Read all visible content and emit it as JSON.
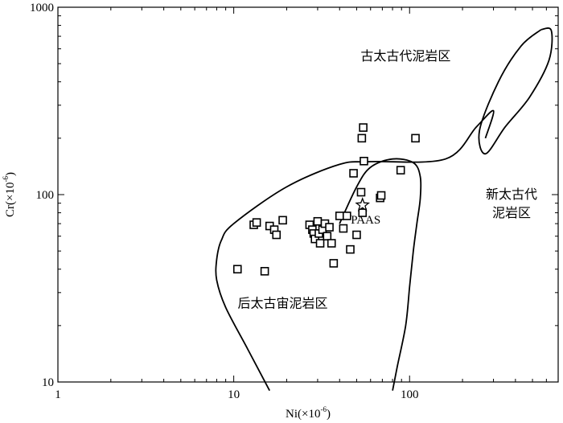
{
  "chart_data": {
    "type": "scatter",
    "xlabel": {
      "base": "Ni(×10",
      "exp": "-6",
      "close": ")"
    },
    "ylabel": {
      "base": "Cr(×10",
      "exp": "-6",
      "close": ")"
    },
    "xscale": "log",
    "yscale": "log",
    "xlim": [
      1,
      700
    ],
    "ylim": [
      10,
      1000
    ],
    "xticks": [
      {
        "value": 1,
        "label": "1"
      },
      {
        "value": 10,
        "label": "10"
      },
      {
        "value": 100,
        "label": "100"
      }
    ],
    "yticks": [
      {
        "value": 10,
        "label": "10"
      },
      {
        "value": 100,
        "label": "100"
      },
      {
        "value": 1000,
        "label": "1000"
      }
    ],
    "grid": false,
    "regions": [
      {
        "name": "archean",
        "label": "古太古代泥岩区",
        "label_pos": {
          "x": 95,
          "y": 520
        },
        "outline": [
          [
            270,
            200
          ],
          [
            300,
            280
          ],
          [
            240,
            230
          ],
          [
            160,
            155
          ],
          [
            60,
            150
          ],
          [
            40,
            145
          ],
          [
            20,
            110
          ],
          [
            10,
            70
          ],
          [
            8.5,
            57
          ],
          [
            8,
            45
          ],
          [
            8,
            35
          ],
          [
            9,
            25
          ],
          [
            12,
            15
          ],
          [
            16,
            9
          ]
        ]
      },
      {
        "name": "neoarchean",
        "label": "新太古代",
        "label2": "泥岩区",
        "label_pos": {
          "x": 380,
          "y": 95
        },
        "outline": [
          [
            560,
            760
          ],
          [
            640,
            750
          ],
          [
            620,
            520
          ],
          [
            480,
            330
          ],
          [
            350,
            230
          ],
          [
            270,
            165
          ],
          [
            250,
            220
          ],
          [
            320,
            400
          ],
          [
            430,
            620
          ],
          [
            560,
            760
          ]
        ]
      },
      {
        "name": "post-archean",
        "label": "后太古宙泥岩区",
        "label_pos": {
          "x": 19,
          "y": 25
        },
        "outline": [
          [
            40,
            70
          ],
          [
            50,
            110
          ],
          [
            60,
            140
          ],
          [
            80,
            155
          ],
          [
            105,
            148
          ],
          [
            115,
            125
          ],
          [
            115,
            95
          ],
          [
            110,
            70
          ],
          [
            105,
            50
          ],
          [
            100,
            32
          ],
          [
            95,
            20
          ],
          [
            85,
            12
          ],
          [
            80,
            9
          ]
        ]
      }
    ],
    "reference": {
      "label": "PAAS",
      "x": 54,
      "y": 88
    },
    "samples": [
      [
        10.5,
        40
      ],
      [
        13,
        69
      ],
      [
        13.5,
        71
      ],
      [
        15,
        39
      ],
      [
        16,
        68
      ],
      [
        17,
        65
      ],
      [
        17.5,
        61
      ],
      [
        19,
        73
      ],
      [
        27,
        69
      ],
      [
        28,
        65
      ],
      [
        28.5,
        62
      ],
      [
        29,
        58
      ],
      [
        30,
        72
      ],
      [
        30.5,
        62
      ],
      [
        31,
        55
      ],
      [
        32,
        65
      ],
      [
        33,
        70
      ],
      [
        34,
        60
      ],
      [
        35,
        67
      ],
      [
        36,
        55
      ],
      [
        37,
        43
      ],
      [
        40,
        77
      ],
      [
        42,
        66
      ],
      [
        44,
        77
      ],
      [
        46,
        51
      ],
      [
        48,
        130
      ],
      [
        50,
        61
      ],
      [
        53,
        103
      ],
      [
        53.5,
        200
      ],
      [
        54,
        80
      ],
      [
        54.5,
        228
      ],
      [
        55,
        151
      ],
      [
        68,
        96
      ],
      [
        69,
        99
      ],
      [
        89,
        135
      ],
      [
        108,
        200
      ]
    ]
  }
}
